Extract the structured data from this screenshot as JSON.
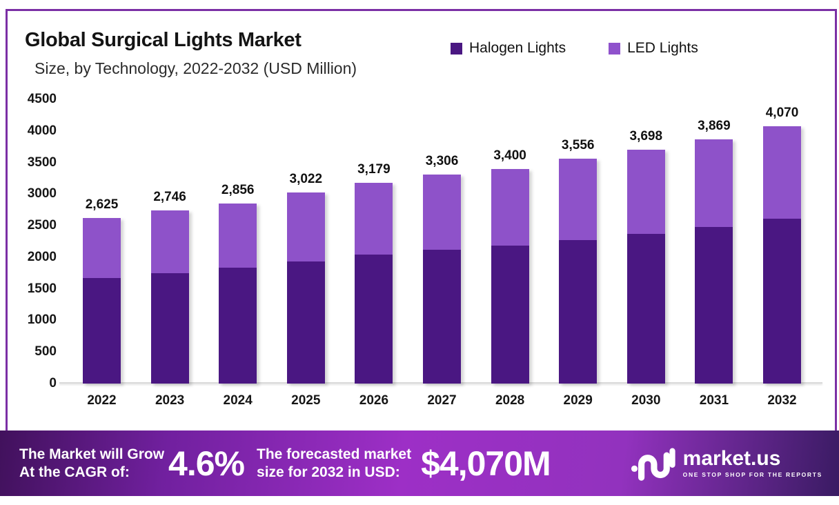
{
  "header": {
    "title": "Global Surgical Lights Market",
    "subtitle": "Size, by Technology, 2022-2032 (USD Million)"
  },
  "legend": [
    {
      "label": "Halogen Lights",
      "color": "#4A1782"
    },
    {
      "label": "LED Lights",
      "color": "#8F52CC"
    }
  ],
  "colors": {
    "frame_border": "#7B2FA5",
    "axis_line": "#D8D8D8",
    "banner_gradient": [
      "#41115C",
      "#9D2FC6",
      "#3A1B63"
    ]
  },
  "chart_data": {
    "type": "bar",
    "stacked": true,
    "title": "Global Surgical Lights Market",
    "subtitle": "Size, by Technology, 2022-2032 (USD Million)",
    "categories": [
      "2022",
      "2023",
      "2024",
      "2025",
      "2026",
      "2027",
      "2028",
      "2029",
      "2030",
      "2031",
      "2032"
    ],
    "series": [
      {
        "name": "Halogen Lights",
        "color": "#4A1782",
        "values": [
          1675,
          1750,
          1835,
          1935,
          2040,
          2115,
          2180,
          2275,
          2365,
          2475,
          2605
        ]
      },
      {
        "name": "LED Lights",
        "color": "#8E52C9",
        "values": [
          950,
          996,
          1021,
          1087,
          1139,
          1191,
          1220,
          1281,
          1333,
          1394,
          1465
        ]
      }
    ],
    "totals": [
      2625,
      2746,
      2856,
      3022,
      3179,
      3306,
      3400,
      3556,
      3698,
      3869,
      4070
    ],
    "total_labels": [
      "2,625",
      "2,746",
      "2,856",
      "3,022",
      "3,179",
      "3,306",
      "3,400",
      "3,556",
      "3,698",
      "3,869",
      "4,070"
    ],
    "xlabel": "",
    "ylabel": "",
    "ylim": [
      0,
      4500
    ],
    "y_ticks": [
      0,
      500,
      1000,
      1500,
      2000,
      2500,
      3000,
      3500,
      4000,
      4500
    ],
    "grid": false,
    "legend_position": "top-right",
    "value_labels": "totals shown above each bar"
  },
  "banner": {
    "growth_label_line1": "The Market will Grow",
    "growth_label_line2": "At the CAGR of:",
    "cagr_value": "4.6%",
    "forecast_label_line1": "The forecasted market",
    "forecast_label_line2": "size for 2032 in USD:",
    "forecast_value": "$4,070M",
    "brand": {
      "name": "market.us",
      "tagline": "ONE STOP SHOP FOR THE REPORTS"
    }
  }
}
